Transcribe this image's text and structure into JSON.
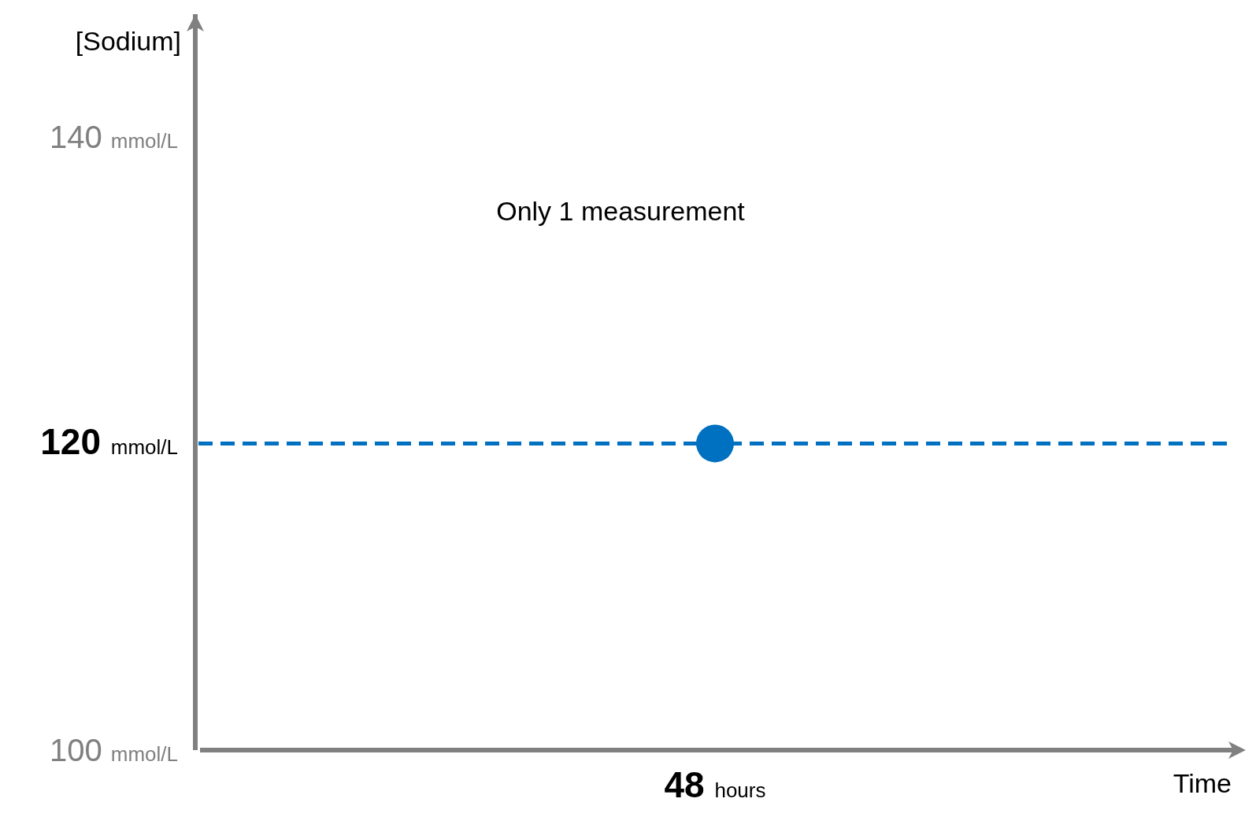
{
  "chart_data": {
    "type": "scatter",
    "xlabel": "Time",
    "ylabel": "[Sodium]",
    "categories": [
      "48 hours"
    ],
    "series": [
      {
        "color": "#0070c0",
        "values": [
          120
        ]
      }
    ],
    "marker": "circle",
    "ylim": [
      100,
      148
    ],
    "yticks": [
      {
        "value": 100,
        "label": "100 mmol/L"
      },
      {
        "value": 120,
        "label": "120 mmol/L"
      },
      {
        "value": 140,
        "label": "140 mmol/L"
      }
    ],
    "ref_lines": [
      {
        "axis": "y",
        "value": 120,
        "color": "#0070c0",
        "line_style": "dashed"
      }
    ],
    "annotations": [
      "Only 1 measurement"
    ]
  }
}
